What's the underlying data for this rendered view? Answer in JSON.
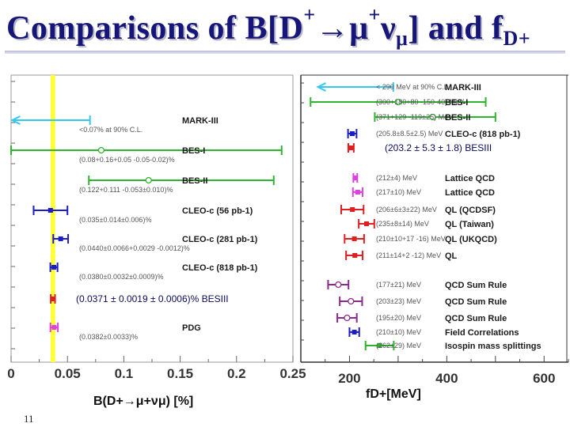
{
  "title": {
    "main": "Comparisons of B[D",
    "sup1": "+",
    "arrow": "→μ",
    "sup2": "+",
    "nu": "ν",
    "nusub": "μ",
    "tail": "] and f",
    "sub": "D+"
  },
  "slide_number": "11",
  "colors": {
    "title": "#15157a",
    "band": "#ffff33",
    "green": "#2db52d",
    "cyan": "#33c8f0",
    "blue": "#1c1cc8",
    "red": "#e02020",
    "magenta": "#e040e0",
    "purple": "#8a2a8a"
  },
  "chart_data": [
    {
      "type": "scatter",
      "orientation": "horizontal error bars",
      "xlabel": "B(D+→μ+νμ)  [%]",
      "xlim": [
        0,
        0.25
      ],
      "xticks": [
        "0",
        "0.05",
        "0.1",
        "0.15",
        "0.2",
        "0.25"
      ],
      "band": {
        "center": 0.0371,
        "halfwidth": 0.002,
        "color": "yellow"
      },
      "points": [
        {
          "name": "MARK-III",
          "label": "<0.07% at 90% C.L.",
          "upper_limit": 0.07,
          "color": "cyan"
        },
        {
          "name": "BES-I",
          "label": "(0.08+0.16+0.05 -0.05-0.02)%",
          "value": 0.08,
          "lo": 0.0,
          "hi": 0.24,
          "color": "green"
        },
        {
          "name": "BES-II",
          "label": "(0.122+0.111 -0.053±0.010)%",
          "value": 0.122,
          "lo": 0.069,
          "hi": 0.233,
          "color": "green"
        },
        {
          "name": "CLEO-c (56 pb-1)",
          "label": "(0.035±0.014±0.006)%",
          "value": 0.035,
          "lo": 0.02,
          "hi": 0.05,
          "color": "blue"
        },
        {
          "name": "CLEO-c (281 pb-1)",
          "label": "(0.0440±0.0066+0.0029 -0.0012)%",
          "value": 0.044,
          "lo": 0.0374,
          "hi": 0.0506,
          "color": "blue"
        },
        {
          "name": "CLEO-c (818 pb-1)",
          "label": "(0.0380±0.0032±0.0009)%",
          "value": 0.038,
          "lo": 0.0348,
          "hi": 0.0412,
          "color": "blue"
        },
        {
          "name": "BESIII",
          "label": "(0.0371 ± 0.0019 ± 0.0006)%  BESIII",
          "value": 0.0371,
          "lo": 0.0352,
          "hi": 0.039,
          "color": "red"
        },
        {
          "name": "PDG",
          "label": "(0.0382±0.0033)%",
          "value": 0.0382,
          "lo": 0.0349,
          "hi": 0.0415,
          "color": "magenta"
        }
      ]
    },
    {
      "type": "scatter",
      "orientation": "horizontal error bars",
      "xlabel": "fD+[MeV]",
      "xlim": [
        100,
        650
      ],
      "xticks": [
        "200",
        "400",
        "600"
      ],
      "points": [
        {
          "name": "MARK-III",
          "label": "< 290 MeV at 90% C.L.",
          "upper_limit": 290,
          "color": "cyan"
        },
        {
          "name": "BES-I",
          "label": "(300+180+80 -150-40) MeV",
          "value": 300,
          "lo": 120,
          "hi": 480,
          "color": "green"
        },
        {
          "name": "BES-II",
          "label": "(371+129 -119±25) MeV",
          "value": 371,
          "lo": 252,
          "hi": 500,
          "color": "green"
        },
        {
          "name": "CLEO-c (818 pb-1)",
          "label": "(205.8±8.5±2.5) MeV",
          "value": 205.8,
          "lo": 197,
          "hi": 214.5,
          "color": "blue"
        },
        {
          "name": "BESIII",
          "label": "(203.2 ± 5.3 ± 1.8) BESIII",
          "value": 203.2,
          "lo": 197.6,
          "hi": 208.8,
          "color": "red"
        },
        {
          "name": "Lattice QCD",
          "label": "(212±4) MeV",
          "value": 212,
          "lo": 208,
          "hi": 216,
          "color": "magenta"
        },
        {
          "name": "Lattice QCD",
          "label": "(217±10) MeV",
          "value": 217,
          "lo": 207,
          "hi": 227,
          "color": "magenta"
        },
        {
          "name": "QL (QCDSF)",
          "label": "(206±6±3±22) MeV",
          "value": 206,
          "lo": 183,
          "hi": 229,
          "color": "red"
        },
        {
          "name": "QL (Taiwan)",
          "label": "(235±8±14) MeV",
          "value": 235,
          "lo": 219,
          "hi": 251,
          "color": "red"
        },
        {
          "name": "QL (UKQCD)",
          "label": "(210±10+17 -16) MeV",
          "value": 210,
          "lo": 190,
          "hi": 230,
          "color": "red"
        },
        {
          "name": "QL",
          "label": "(211±14+2 -12) MeV",
          "value": 211,
          "lo": 193,
          "hi": 227,
          "color": "red"
        },
        {
          "name": "QCD Sum Rule",
          "label": "(177±21) MeV",
          "value": 177,
          "lo": 156,
          "hi": 198,
          "color": "purple"
        },
        {
          "name": "QCD Sum Rule",
          "label": "(203±23) MeV",
          "value": 203,
          "lo": 180,
          "hi": 226,
          "color": "purple"
        },
        {
          "name": "QCD Sum Rule",
          "label": "(195±20) MeV",
          "value": 195,
          "lo": 175,
          "hi": 215,
          "color": "purple"
        },
        {
          "name": "Field Correlations",
          "label": "(210±10) MeV",
          "value": 210,
          "lo": 200,
          "hi": 220,
          "color": "blue"
        },
        {
          "name": "Isospin mass splittings",
          "label": "(262±29) MeV",
          "value": 262,
          "lo": 233,
          "hi": 291,
          "color": "green"
        }
      ]
    }
  ]
}
